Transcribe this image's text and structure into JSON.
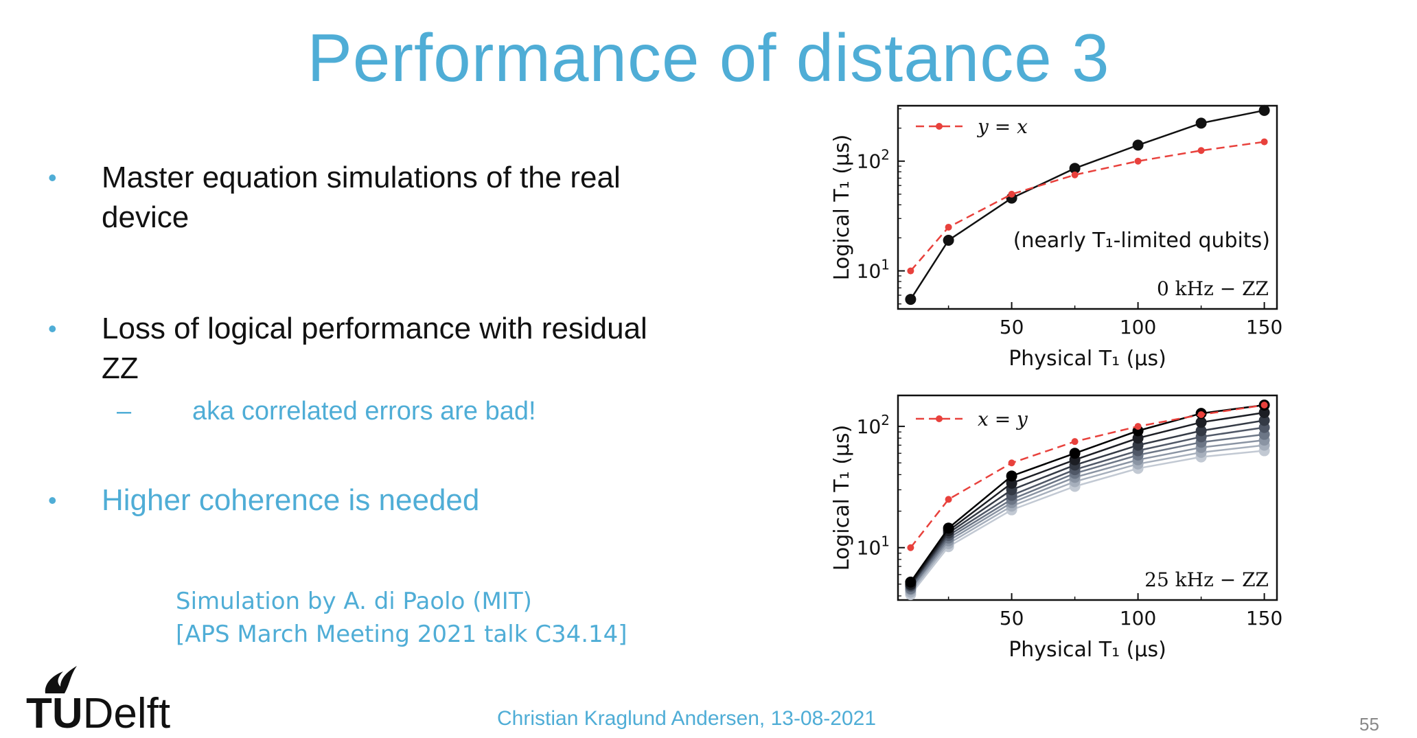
{
  "slide": {
    "title": "Performance of distance 3",
    "bullets": [
      {
        "text": "Master equation simulations of the real device"
      },
      {
        "text": "Loss of logical performance with residual ZZ"
      },
      {
        "text": "Higher coherence is needed"
      }
    ],
    "sub_bullet": "aka correlated errors are bad!",
    "credit_line1": "Simulation by A. di Paolo (MIT)",
    "credit_line2": "[APS March Meeting 2021 talk C34.14]",
    "logo": {
      "tu": "TU",
      "delft": "Delft"
    },
    "footer": "Christian Kraglund Andersen, 13-08-2021",
    "page_number": "55",
    "colors": {
      "accent": "#4fadd6",
      "ref_line": "#e8413c",
      "text": "#111111"
    }
  },
  "chart_data": [
    {
      "type": "line",
      "xlabel": "Physical T1 (μs)",
      "ylabel": "Logical T1 (μs)",
      "y_scale": "log",
      "xlim": [
        5,
        155
      ],
      "ylim": [
        4.5,
        320
      ],
      "x_ticks": [
        "50",
        "100",
        "150"
      ],
      "y_ticks": [
        "10",
        "10²"
      ],
      "annotation": "(nearly T1-limited qubits)",
      "corner_label": "0 kHz − ZZ",
      "legend": {
        "label": "y = x",
        "position": "top-left"
      },
      "series": [
        {
          "name": "y = x",
          "style": "dashed",
          "color": "#e8413c",
          "x": [
            10,
            25,
            50,
            75,
            100,
            125,
            150
          ],
          "y": [
            10,
            25,
            50,
            75,
            100,
            125,
            150
          ]
        },
        {
          "style": "solid",
          "color": "#111111",
          "x": [
            10,
            25,
            50,
            75,
            100,
            125,
            150
          ],
          "y": [
            5.5,
            19,
            46,
            86,
            140,
            222,
            290
          ]
        }
      ]
    },
    {
      "type": "line",
      "xlabel": "Physical T1 (μs)",
      "ylabel": "Logical T1 (μs)",
      "y_scale": "log",
      "xlim": [
        5,
        155
      ],
      "ylim": [
        3.7,
        180
      ],
      "x_ticks": [
        "50",
        "100",
        "150"
      ],
      "y_ticks": [
        "10",
        "10²"
      ],
      "corner_label": "25 kHz − ZZ",
      "legend": {
        "label": "x = y",
        "position": "top-left"
      },
      "series": [
        {
          "name": "x = y",
          "style": "dashed",
          "color": "#e8413c",
          "x": [
            10,
            25,
            50,
            75,
            100,
            125,
            150
          ],
          "y": [
            10,
            25,
            50,
            75,
            100,
            125,
            150
          ]
        },
        {
          "style": "solid",
          "color": "#000000",
          "x": [
            10,
            25,
            50,
            75,
            100,
            125,
            150
          ],
          "y": [
            5.2,
            14.5,
            39,
            60,
            92,
            128,
            150
          ]
        },
        {
          "style": "solid",
          "color": "#1c1e24",
          "x": [
            10,
            25,
            50,
            75,
            100,
            125,
            150
          ],
          "y": [
            5.0,
            13.8,
            34,
            53,
            80,
            108,
            130
          ]
        },
        {
          "style": "solid",
          "color": "#343a45",
          "x": [
            10,
            25,
            50,
            75,
            100,
            125,
            150
          ],
          "y": [
            4.9,
            13.2,
            30,
            48,
            70,
            92,
            112
          ]
        },
        {
          "style": "solid",
          "color": "#505867",
          "x": [
            10,
            25,
            50,
            75,
            100,
            125,
            150
          ],
          "y": [
            4.8,
            12.6,
            27,
            44,
            63,
            82,
            98
          ]
        },
        {
          "style": "solid",
          "color": "#6c7686",
          "x": [
            10,
            25,
            50,
            75,
            100,
            125,
            150
          ],
          "y": [
            4.6,
            12.0,
            25,
            41,
            58,
            74,
            86
          ]
        },
        {
          "style": "solid",
          "color": "#8a94a3",
          "x": [
            10,
            25,
            50,
            75,
            100,
            125,
            150
          ],
          "y": [
            4.5,
            11.4,
            23.5,
            38,
            53,
            67,
            77
          ]
        },
        {
          "style": "solid",
          "color": "#a6afbc",
          "x": [
            10,
            25,
            50,
            75,
            100,
            125,
            150
          ],
          "y": [
            4.3,
            10.8,
            22,
            35,
            49,
            61,
            70
          ]
        },
        {
          "style": "solid",
          "color": "#c2c9d3",
          "x": [
            10,
            25,
            50,
            75,
            100,
            125,
            150
          ],
          "y": [
            4.1,
            10.2,
            20.5,
            32,
            45,
            56,
            63
          ]
        }
      ]
    }
  ]
}
